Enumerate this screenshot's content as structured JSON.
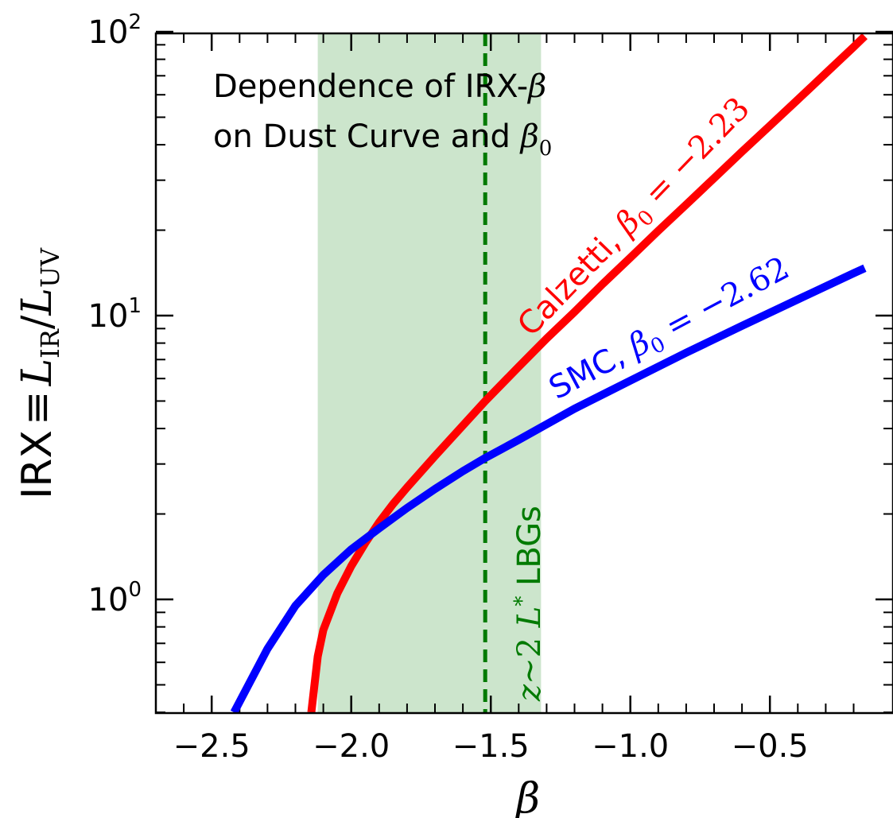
{
  "chart_data": {
    "type": "line",
    "title": "",
    "annotation_title": [
      "Dependence of IRX-β",
      "on Dust Curve and β0"
    ],
    "xlabel": "β",
    "ylabel": "IRX ≡ L_IR/L_UV",
    "xlim": [
      -2.7,
      -0.16
    ],
    "ylim": [
      0.4,
      100
    ],
    "yscale": "log",
    "grid": false,
    "x_ticks": [
      -2.5,
      -2.0,
      -1.5,
      -1.0,
      -0.5
    ],
    "x_tick_labels": [
      "−2.5",
      "−2.0",
      "−1.5",
      "−1.0",
      "−0.5"
    ],
    "y_ticks": [
      1,
      10,
      100
    ],
    "y_tick_labels": [
      {
        "base": "10",
        "exp": "0"
      },
      {
        "base": "10",
        "exp": "1"
      },
      {
        "base": "10",
        "exp": "2"
      }
    ],
    "shaded_band": {
      "x": [
        -2.12,
        -1.32
      ],
      "color": "#cce5cc"
    },
    "vertical_line": {
      "x": -1.52,
      "color": "#007a00",
      "style": "dashed",
      "label": "z∼2 L* LBGs"
    },
    "series": [
      {
        "name": "Calzetti, β0 = −2.23",
        "color": "#ff0000",
        "x": [
          -2.143,
          -2.12,
          -2.1,
          -2.05,
          -2.0,
          -1.95,
          -1.9,
          -1.85,
          -1.8,
          -1.7,
          -1.6,
          -1.52,
          -1.4,
          -1.3,
          -1.2,
          -1.1,
          -1.0,
          -0.9,
          -0.8,
          -0.7,
          -0.6,
          -0.5,
          -0.4,
          -0.3,
          -0.2,
          -0.16
        ],
        "y": [
          0.4,
          0.63,
          0.78,
          1.05,
          1.31,
          1.58,
          1.87,
          2.17,
          2.48,
          3.2,
          4.1,
          5.0,
          6.6,
          8.3,
          10.3,
          12.9,
          16.0,
          19.9,
          24.6,
          30.5,
          37.8,
          46.7,
          57.7,
          71.4,
          88.4,
          96.5
        ]
      },
      {
        "name": "SMC, β0 = −2.62",
        "color": "#0000ff",
        "x": [
          -2.42,
          -2.3,
          -2.2,
          -2.1,
          -2.0,
          -1.9,
          -1.8,
          -1.7,
          -1.6,
          -1.52,
          -1.4,
          -1.2,
          -1.0,
          -0.8,
          -0.6,
          -0.4,
          -0.2,
          -0.16
        ],
        "y": [
          0.4,
          0.67,
          0.95,
          1.22,
          1.5,
          1.78,
          2.1,
          2.45,
          2.83,
          3.15,
          3.65,
          4.7,
          5.9,
          7.4,
          9.2,
          11.4,
          14.1,
          14.7
        ]
      }
    ]
  }
}
